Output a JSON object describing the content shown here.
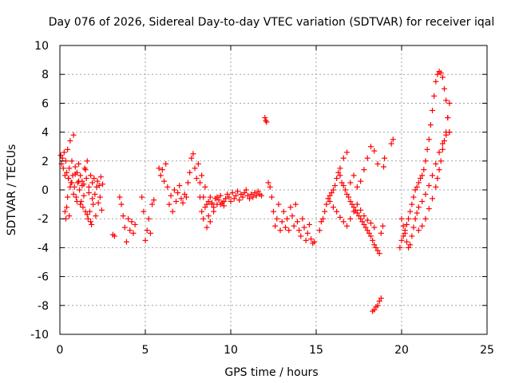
{
  "chart_data": {
    "type": "scatter",
    "title": "Day 076 of 2026, Sidereal Day-to-day VTEC variation (SDTVAR) for receiver iqal",
    "xlabel": "GPS time / hours",
    "ylabel": "SDTVAR / TECUs",
    "xlim": [
      0,
      25
    ],
    "ylim": [
      -10,
      10
    ],
    "xticks": [
      "0",
      "5",
      "10",
      "15",
      "20",
      "25"
    ],
    "yticks": [
      "10",
      "8",
      "6",
      "4",
      "2",
      "0",
      "-2",
      "-4",
      "-6",
      "-8",
      "-10"
    ],
    "grid": true,
    "marker": "+",
    "color": "#ff0000",
    "series": [
      {
        "name": "SDTVAR",
        "x": [
          0.05,
          0.1,
          0.15,
          0.2,
          0.25,
          0.3,
          0.35,
          0.4,
          0.45,
          0.5,
          0.55,
          0.6,
          0.65,
          0.7,
          0.75,
          0.8,
          0.85,
          0.9,
          0.95,
          1.0,
          1.05,
          1.1,
          1.15,
          1.2,
          1.25,
          1.3,
          1.35,
          1.4,
          1.45,
          1.5,
          1.55,
          1.6,
          1.65,
          1.7,
          1.75,
          1.8,
          1.85,
          1.9,
          1.95,
          2.0,
          2.05,
          2.1,
          2.15,
          2.2,
          2.25,
          2.3,
          2.35,
          2.4,
          2.45,
          2.5,
          0.3,
          0.35,
          0.4,
          0.45,
          0.5,
          0.55,
          0.6,
          0.7,
          0.8,
          0.9,
          1.0,
          1.1,
          1.2,
          1.3,
          1.4,
          1.5,
          1.6,
          1.7,
          1.8,
          1.9,
          3.1,
          3.2,
          3.5,
          3.6,
          3.7,
          3.8,
          3.9,
          4.0,
          4.1,
          4.2,
          4.3,
          4.4,
          4.8,
          4.9,
          5.0,
          5.1,
          5.2,
          5.3,
          5.4,
          5.5,
          5.8,
          5.9,
          6.0,
          6.1,
          6.2,
          6.3,
          6.4,
          6.5,
          6.6,
          6.7,
          6.8,
          6.9,
          7.0,
          7.1,
          7.2,
          7.3,
          7.4,
          7.5,
          7.6,
          7.7,
          7.8,
          7.9,
          8.0,
          8.1,
          8.2,
          8.3,
          8.4,
          8.5,
          8.6,
          8.7,
          8.8,
          8.9,
          9.0,
          9.1,
          9.2,
          9.3,
          9.4,
          9.5,
          9.6,
          9.7,
          9.8,
          9.9,
          10.0,
          10.1,
          10.2,
          10.3,
          10.4,
          10.5,
          10.6,
          10.7,
          10.8,
          10.9,
          11.0,
          11.1,
          11.2,
          11.3,
          11.4,
          11.5,
          11.6,
          11.7,
          11.8,
          8.2,
          8.3,
          8.4,
          8.5,
          8.6,
          8.7,
          8.8,
          8.9,
          9.0,
          9.2,
          9.4,
          9.6,
          12.0,
          12.05,
          12.1,
          12.2,
          12.3,
          12.4,
          12.5,
          12.6,
          12.7,
          12.8,
          12.9,
          13.0,
          13.1,
          13.2,
          13.3,
          13.4,
          13.5,
          13.6,
          13.7,
          13.8,
          13.9,
          14.0,
          14.1,
          14.2,
          14.3,
          14.4,
          14.5,
          14.6,
          14.7,
          14.8,
          14.9,
          15.2,
          15.3,
          15.4,
          15.5,
          15.6,
          15.7,
          15.8,
          15.9,
          16.0,
          16.1,
          16.2,
          16.3,
          16.4,
          16.5,
          16.6,
          16.7,
          16.8,
          16.9,
          17.0,
          17.1,
          17.2,
          17.3,
          17.4,
          17.5,
          17.6,
          17.7,
          17.8,
          17.9,
          18.0,
          18.1,
          18.2,
          18.3,
          18.4,
          18.5,
          18.6,
          18.7,
          18.8,
          18.9,
          15.8,
          16.0,
          16.2,
          16.4,
          16.6,
          16.8,
          17.0,
          17.2,
          17.4,
          17.6,
          17.8,
          18.0,
          18.2,
          18.4,
          16.4,
          16.6,
          16.8,
          17.0,
          17.2,
          17.4,
          17.6,
          17.8,
          18.0,
          18.2,
          18.4,
          18.6,
          18.3,
          18.4,
          18.5,
          18.6,
          18.7,
          18.8,
          18.95,
          19.0,
          19.4,
          19.5,
          19.9,
          20.0,
          20.1,
          20.2,
          20.3,
          20.4,
          20.5,
          20.6,
          20.7,
          20.8,
          20.9,
          21.0,
          21.1,
          21.2,
          21.3,
          21.4,
          21.5,
          21.6,
          21.7,
          21.8,
          21.9,
          22.0,
          22.1,
          22.2,
          22.3,
          22.4,
          22.5,
          22.6,
          22.7,
          22.8,
          20.0,
          20.1,
          20.2,
          20.3,
          20.4,
          20.5,
          20.6,
          20.7,
          20.8,
          20.9,
          21.0,
          21.2,
          21.4,
          21.6,
          21.8,
          22.0,
          22.2,
          22.4,
          22.6,
          22.8,
          21.0,
          21.2,
          21.4,
          21.6,
          21.8,
          22.0,
          22.1,
          22.2,
          22.3,
          22.4,
          22.5,
          22.6,
          22.7,
          22.8
        ],
        "y": [
          2.4,
          1.8,
          2.2,
          1.5,
          2.6,
          1.0,
          2.0,
          1.2,
          2.8,
          0.8,
          1.5,
          3.4,
          0.5,
          2.0,
          1.0,
          3.8,
          0.2,
          1.6,
          -0.5,
          1.2,
          0.5,
          1.8,
          0.0,
          1.0,
          -0.8,
          0.6,
          -1.2,
          0.4,
          1.5,
          -1.5,
          0.8,
          2.0,
          -2.0,
          0.2,
          -1.5,
          1.0,
          -2.4,
          0.5,
          -1.0,
          0.8,
          -0.3,
          -1.8,
          0.2,
          0.6,
          -0.9,
          0.3,
          -0.5,
          0.9,
          -1.4,
          0.4,
          -1.5,
          -2.0,
          -1.2,
          -0.5,
          0.8,
          -1.8,
          0.2,
          0.5,
          -0.3,
          1.1,
          -0.8,
          0.6,
          -1.0,
          0.3,
          -0.4,
          1.4,
          -1.7,
          -0.2,
          -2.2,
          -0.6,
          -3.1,
          -3.2,
          -0.5,
          -1.0,
          -1.8,
          -2.6,
          -3.6,
          -2.0,
          -2.8,
          -2.2,
          -3.0,
          -2.4,
          -0.5,
          -1.5,
          -3.5,
          -2.8,
          -2.0,
          -3.0,
          -1.0,
          -0.7,
          1.5,
          1.0,
          1.4,
          0.6,
          1.8,
          0.2,
          -1.0,
          -0.4,
          -1.5,
          0.0,
          -0.8,
          -0.2,
          0.3,
          -0.6,
          -0.9,
          -0.3,
          -0.5,
          0.5,
          1.2,
          2.2,
          2.5,
          1.5,
          0.8,
          1.8,
          0.5,
          1.0,
          -0.5,
          0.2,
          -1.0,
          -0.8,
          -0.5,
          -0.9,
          -1.2,
          -0.6,
          -1.0,
          -0.7,
          -0.4,
          -0.9,
          -1.1,
          -0.6,
          -0.3,
          -0.5,
          -0.8,
          -0.2,
          -0.6,
          -0.4,
          -0.1,
          -0.7,
          -0.3,
          -0.5,
          -0.2,
          0.0,
          -0.4,
          -0.6,
          -0.3,
          -0.5,
          -0.2,
          -0.4,
          -0.1,
          -0.3,
          -0.4,
          -0.5,
          -1.5,
          -2.0,
          -1.2,
          -2.6,
          -1.8,
          -2.2,
          -1.0,
          -1.5,
          -0.5,
          -1.0,
          -0.8,
          5.0,
          4.8,
          4.7,
          0.5,
          0.2,
          -0.5,
          -1.5,
          -2.5,
          -2.0,
          -1.0,
          -2.8,
          -2.2,
          -1.5,
          -2.6,
          -2.0,
          -2.8,
          -1.2,
          -1.8,
          -2.5,
          -1.0,
          -2.2,
          -2.8,
          -3.2,
          -2.0,
          -2.6,
          -3.5,
          -3.0,
          -2.4,
          -3.4,
          -3.7,
          -3.6,
          -2.8,
          -2.2,
          -2.0,
          -1.5,
          -1.0,
          -0.6,
          -0.4,
          -0.2,
          0.0,
          0.3,
          0.8,
          1.2,
          1.0,
          0.5,
          0.3,
          0.0,
          -0.3,
          -0.5,
          -0.8,
          -1.0,
          -1.2,
          -1.4,
          -1.6,
          -1.8,
          -2.0,
          -2.2,
          -2.4,
          -2.6,
          -2.8,
          -3.0,
          -3.2,
          -3.5,
          -3.8,
          -4.0,
          -4.2,
          -4.4,
          -3.0,
          -2.5,
          -0.8,
          -1.2,
          -1.5,
          -1.9,
          -2.2,
          -2.5,
          -2.0,
          -1.5,
          -1.0,
          -1.4,
          -1.8,
          -2.1,
          -2.3,
          -2.6,
          1.5,
          2.2,
          2.6,
          0.5,
          1.0,
          0.2,
          0.6,
          1.4,
          2.2,
          3.0,
          2.7,
          1.8,
          -8.4,
          -8.3,
          -8.1,
          -8.0,
          -7.7,
          -7.5,
          1.6,
          2.2,
          3.2,
          3.5,
          -4.0,
          -3.5,
          -3.2,
          -2.8,
          -2.4,
          -2.0,
          -1.5,
          -1.0,
          -0.5,
          0.0,
          0.2,
          0.5,
          0.8,
          1.0,
          1.4,
          2.0,
          2.8,
          3.5,
          4.5,
          5.5,
          6.5,
          7.5,
          8.0,
          8.2,
          8.1,
          7.8,
          7.0,
          6.2,
          5.0,
          4.0,
          -2.0,
          -2.5,
          -3.0,
          -3.6,
          -4.0,
          -3.8,
          -3.2,
          -2.6,
          -2.0,
          -1.6,
          -1.2,
          -0.8,
          -0.3,
          0.3,
          1.0,
          1.8,
          2.6,
          3.2,
          3.8,
          4.0,
          -2.8,
          -2.5,
          -2.0,
          -1.3,
          -0.6,
          0.2,
          0.8,
          1.4,
          2.0,
          2.8,
          3.4,
          4.0,
          5.0,
          6.0
        ]
      }
    ]
  }
}
